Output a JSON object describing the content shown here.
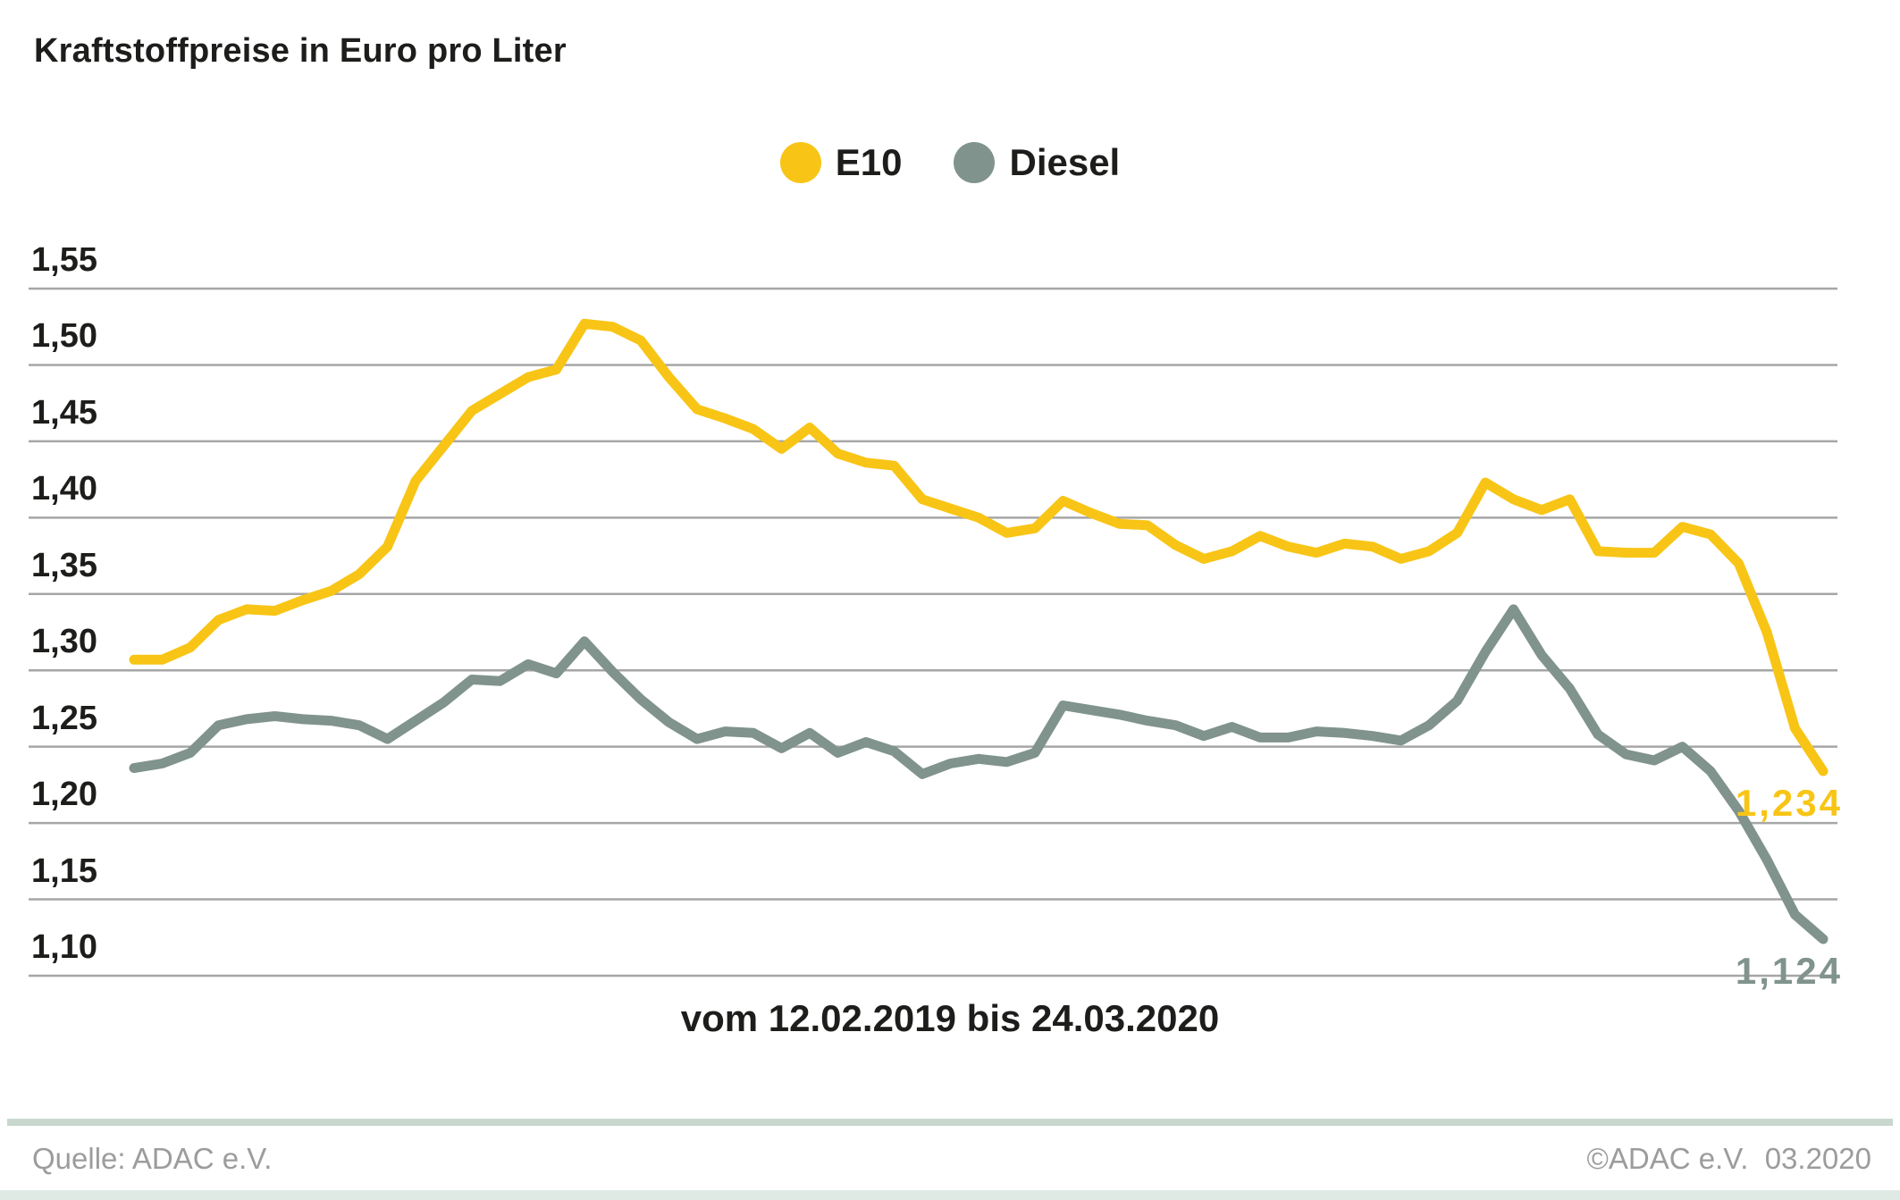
{
  "title": "Kraftstoffpreise in Euro pro Liter",
  "footer": {
    "source": "Quelle: ADAC e.V.",
    "copyright": "©ADAC e.V.  03.2020"
  },
  "chart_data": {
    "type": "line",
    "title": "Kraftstoffpreise in Euro pro Liter",
    "xlabel": "vom 12.02.2019 bis 24.03.2020",
    "ylabel": "Euro pro Liter",
    "ylim": [
      1.1,
      1.55
    ],
    "yticks": [
      "1,55",
      "1,50",
      "1,45",
      "1,40",
      "1,35",
      "1,30",
      "1,25",
      "1,20",
      "1,15",
      "1,10"
    ],
    "grid": true,
    "legend_position": "top-center",
    "grid_color": "#a6a6a6",
    "x_start": "12.02.2019",
    "x_end": "24.03.2020",
    "series": [
      {
        "name": "E10",
        "color": "#f8c516",
        "end_label": "1,234",
        "end_value": 1.234,
        "values": [
          1.307,
          1.307,
          1.315,
          1.333,
          1.34,
          1.339,
          1.346,
          1.352,
          1.363,
          1.381,
          1.424,
          1.447,
          1.47,
          1.481,
          1.492,
          1.497,
          1.527,
          1.525,
          1.516,
          1.492,
          1.471,
          1.465,
          1.458,
          1.445,
          1.459,
          1.442,
          1.436,
          1.434,
          1.412,
          1.406,
          1.4,
          1.39,
          1.393,
          1.411,
          1.403,
          1.396,
          1.395,
          1.382,
          1.373,
          1.378,
          1.388,
          1.381,
          1.377,
          1.383,
          1.381,
          1.373,
          1.378,
          1.39,
          1.423,
          1.412,
          1.405,
          1.412,
          1.378,
          1.377,
          1.377,
          1.394,
          1.389,
          1.37,
          1.325,
          1.262,
          1.234
        ]
      },
      {
        "name": "Diesel",
        "color": "#80938d",
        "end_label": "1,124",
        "end_value": 1.124,
        "values": [
          1.236,
          1.239,
          1.246,
          1.264,
          1.268,
          1.27,
          1.268,
          1.267,
          1.264,
          1.255,
          1.267,
          1.279,
          1.294,
          1.293,
          1.304,
          1.298,
          1.319,
          1.299,
          1.281,
          1.266,
          1.255,
          1.26,
          1.259,
          1.249,
          1.259,
          1.246,
          1.253,
          1.247,
          1.232,
          1.239,
          1.242,
          1.24,
          1.246,
          1.277,
          1.274,
          1.271,
          1.267,
          1.264,
          1.257,
          1.263,
          1.256,
          1.256,
          1.26,
          1.259,
          1.257,
          1.254,
          1.264,
          1.28,
          1.312,
          1.34,
          1.31,
          1.288,
          1.258,
          1.245,
          1.241,
          1.25,
          1.234,
          1.208,
          1.176,
          1.14,
          1.124
        ]
      }
    ]
  }
}
